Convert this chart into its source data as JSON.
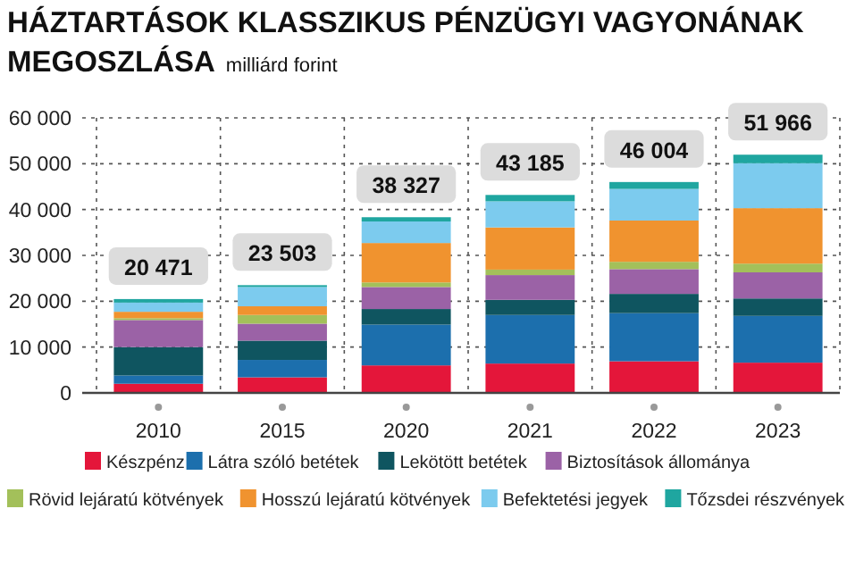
{
  "chart_data": {
    "type": "bar",
    "stacked": true,
    "title": "HÁZTARTÁSOK KLASSZIKUS PÉNZÜGYI VAGYONÁNAK MEGOSZLÁSA",
    "subtitle": "milliárd forint",
    "categories": [
      "2010",
      "2015",
      "2020",
      "2021",
      "2022",
      "2023"
    ],
    "series": [
      {
        "name": "Készpénz",
        "color": "#e4163a",
        "values": [
          2000,
          3400,
          6000,
          6400,
          6900,
          6600
        ]
      },
      {
        "name": "Látra szóló betétek",
        "color": "#1c6fad",
        "values": [
          1800,
          3800,
          8900,
          10600,
          10500,
          10200
        ]
      },
      {
        "name": "Lekötött betétek",
        "color": "#0f5560",
        "values": [
          6200,
          4200,
          3400,
          3300,
          4200,
          3800
        ]
      },
      {
        "name": "Biztosítások állománya",
        "color": "#9b62a6",
        "values": [
          5900,
          3700,
          4800,
          5400,
          5400,
          5700
        ]
      },
      {
        "name": "Rövid lejáratú kötvények",
        "color": "#a3c05a",
        "values": [
          400,
          1900,
          1000,
          1200,
          1600,
          1900
        ]
      },
      {
        "name": "Hosszú lejáratú kötvények",
        "color": "#f0932f",
        "values": [
          1400,
          1900,
          8600,
          9200,
          9000,
          12100
        ]
      },
      {
        "name": "Befektetési jegyek",
        "color": "#7ccbee",
        "values": [
          2000,
          4200,
          4700,
          5700,
          6900,
          9800
        ]
      },
      {
        "name": "Tőzsdei részvények",
        "color": "#1fa6a0",
        "values": [
          771,
          403,
          927,
          1385,
          1504,
          1866
        ]
      }
    ],
    "totals": [
      "20 471",
      "23 503",
      "38 327",
      "43 185",
      "46 004",
      "51 966"
    ],
    "ylim": [
      0,
      60000
    ],
    "yticks": [
      0,
      {
        "value": 10000,
        "label": "10 000"
      },
      {
        "value": 20000,
        "label": "20 000"
      },
      {
        "value": 30000,
        "label": "30 000"
      },
      {
        "value": 40000,
        "label": "40 000"
      },
      {
        "value": 50000,
        "label": "50 000"
      },
      {
        "value": 60000,
        "label": "60 000"
      }
    ],
    "grid": true,
    "legend": "bottom"
  }
}
